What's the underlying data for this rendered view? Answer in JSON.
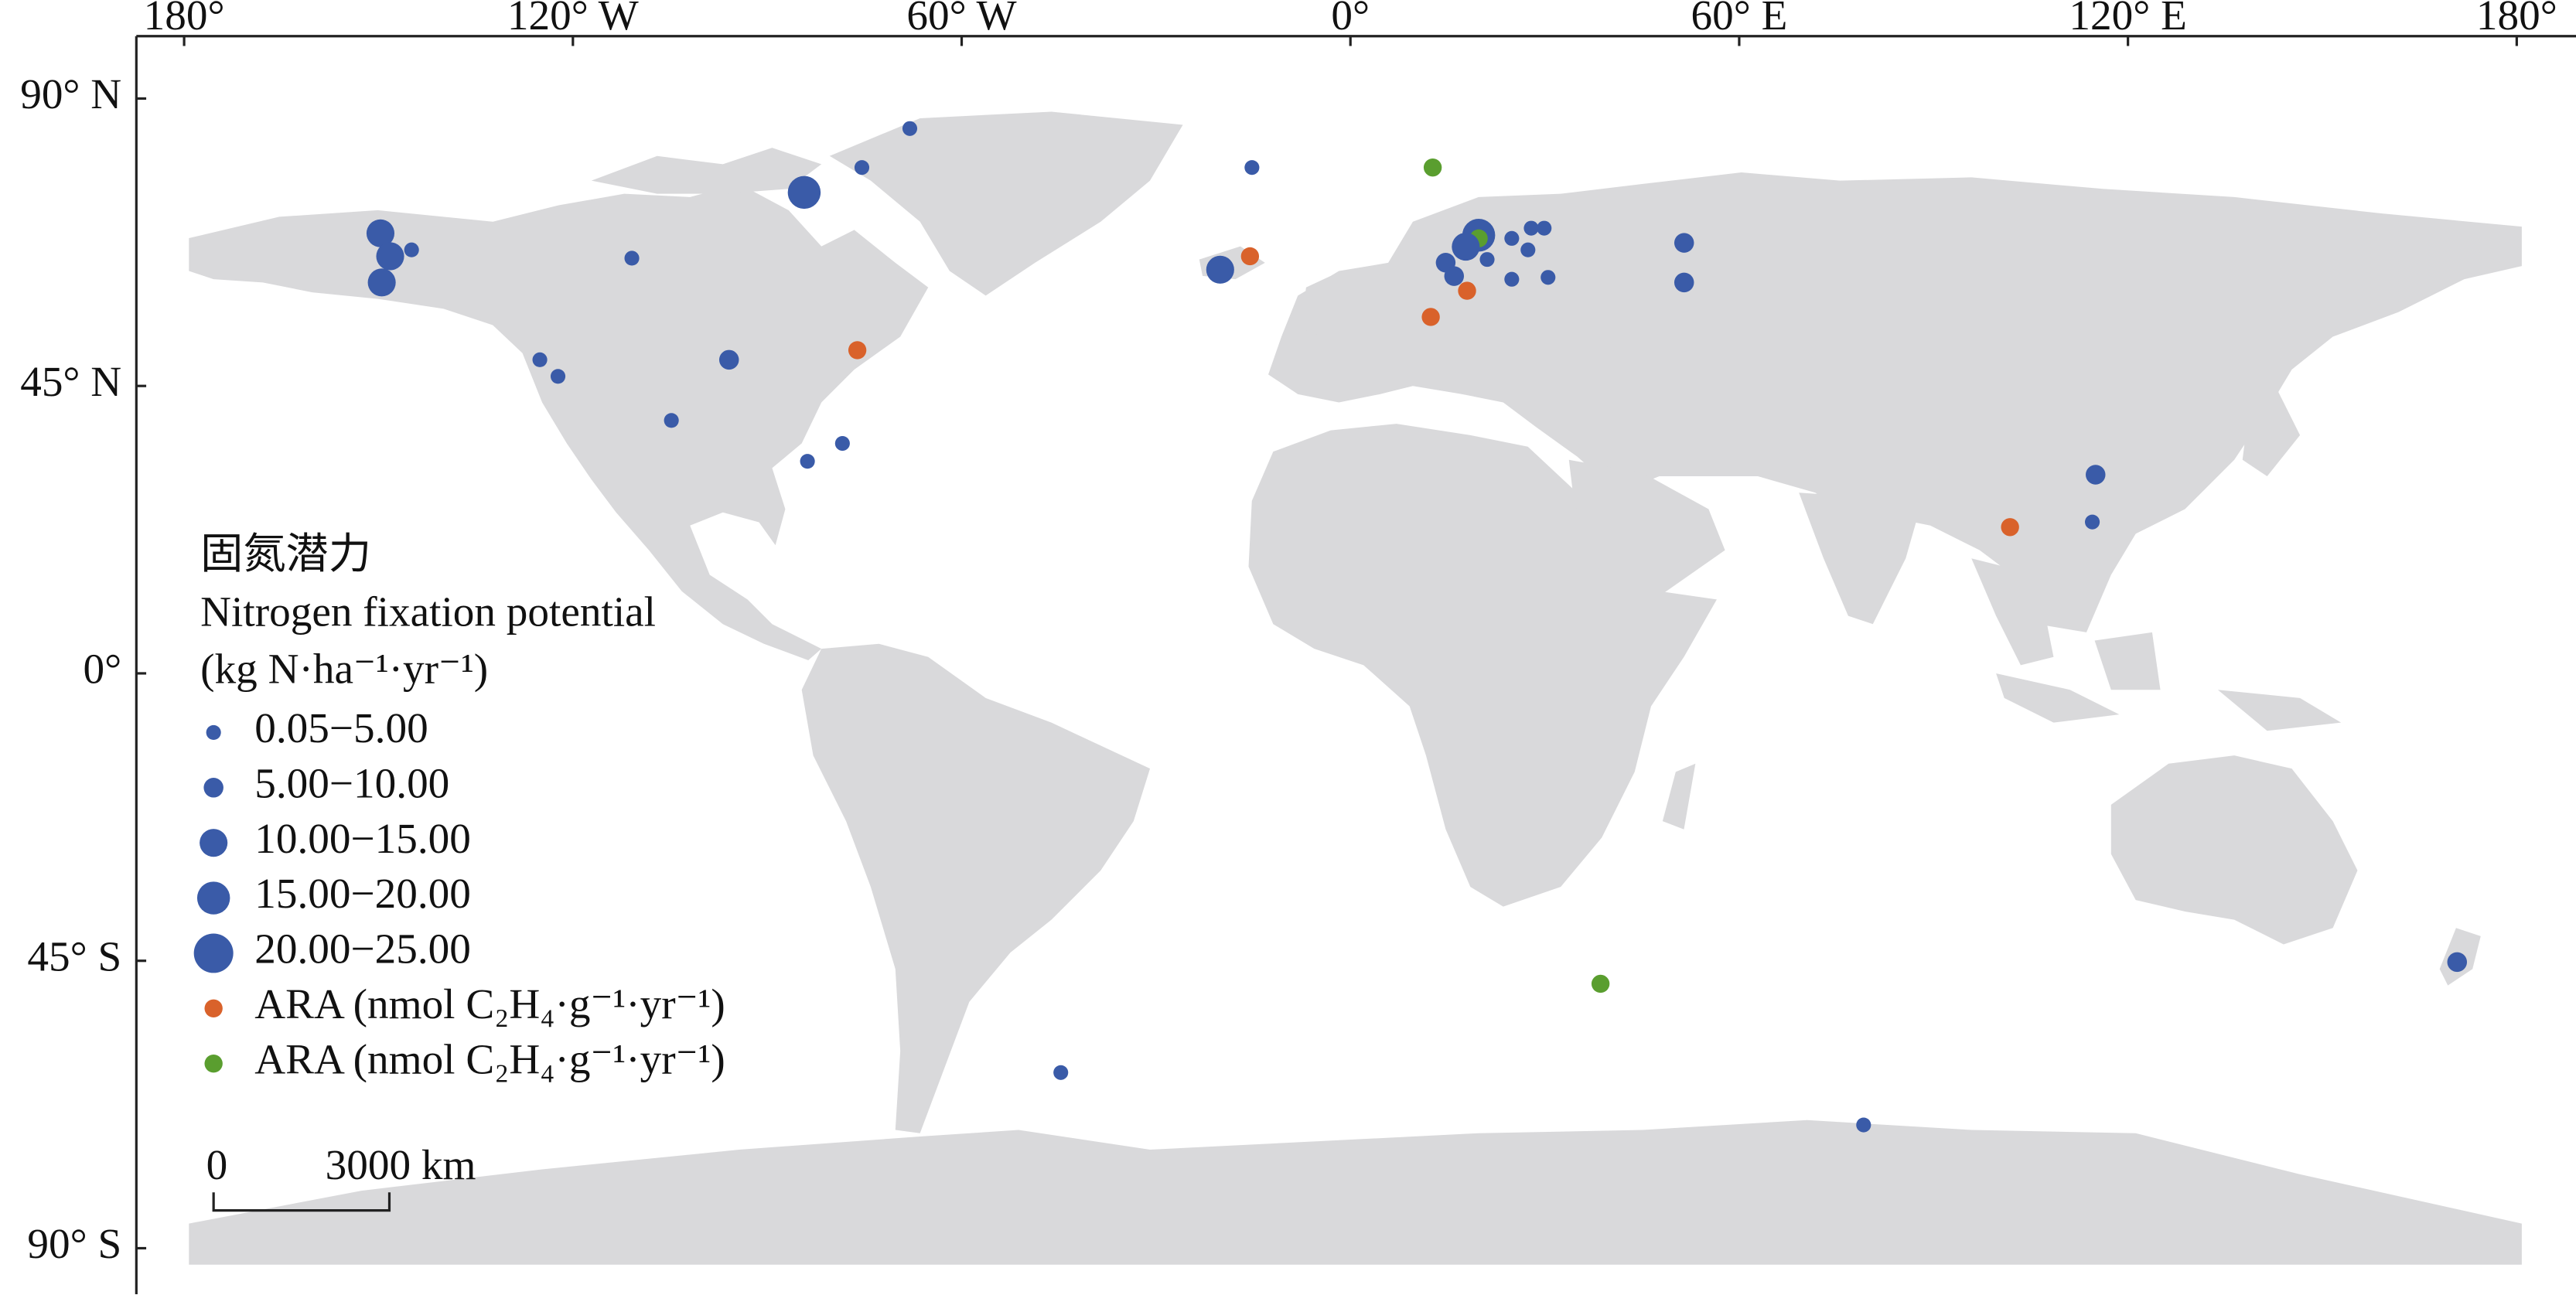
{
  "map": {
    "lon_ticks": [
      {
        "value": -180,
        "label": "180°"
      },
      {
        "value": -120,
        "label": "120° W"
      },
      {
        "value": -60,
        "label": "60° W"
      },
      {
        "value": 0,
        "label": "0°"
      },
      {
        "value": 60,
        "label": "60° E"
      },
      {
        "value": 120,
        "label": "120° E"
      },
      {
        "value": 180,
        "label": "180°"
      }
    ],
    "lat_ticks": [
      {
        "value": 90,
        "label": "90° N"
      },
      {
        "value": 45,
        "label": "45° N"
      },
      {
        "value": 0,
        "label": "0°"
      },
      {
        "value": -45,
        "label": "45° S"
      },
      {
        "value": -90,
        "label": "90° S"
      }
    ],
    "legend": {
      "title": [
        "固氮潜力",
        "Nitrogen fixation potential",
        "(kg N·ha⁻¹·yr⁻¹)"
      ],
      "items": [
        {
          "label": "0.05−5.00",
          "color": "#3a5ba8"
        },
        {
          "label": "5.00−10.00",
          "color": "#3a5ba8"
        },
        {
          "label": "10.00−15.00",
          "color": "#3a5ba8"
        },
        {
          "label": "15.00−20.00",
          "color": "#3a5ba8"
        },
        {
          "label": "20.00−25.00",
          "color": "#3a5ba8"
        },
        {
          "label": "ARA (nmol C₂H₄·g⁻¹·yr⁻¹)",
          "color": "#d9622b"
        },
        {
          "label": "ARA (nmol C₂H₄·g⁻¹·yr⁻¹)",
          "color": "#5a9e2f"
        }
      ]
    },
    "scale_bar": {
      "start_label": "0",
      "end_label": "3000 km"
    },
    "sites": [
      {
        "lon": -68.0,
        "lat": 85.3,
        "class": 0
      },
      {
        "lon": -75.4,
        "lat": 79.2,
        "class": 0
      },
      {
        "lon": -84.3,
        "lat": 75.3,
        "class": 3
      },
      {
        "lon": -15.2,
        "lat": 79.2,
        "class": 0
      },
      {
        "lon": 12.7,
        "lat": 79.2,
        "class": 6
      },
      {
        "lon": -149.7,
        "lat": 68.9,
        "class": 2
      },
      {
        "lon": -148.2,
        "lat": 65.3,
        "class": 2
      },
      {
        "lon": -144.9,
        "lat": 66.3,
        "class": 0
      },
      {
        "lon": -149.5,
        "lat": 61.2,
        "class": 2
      },
      {
        "lon": -110.9,
        "lat": 65.0,
        "class": 0
      },
      {
        "lon": -125.1,
        "lat": 49.1,
        "class": 0
      },
      {
        "lon": -122.3,
        "lat": 46.5,
        "class": 0
      },
      {
        "lon": -95.9,
        "lat": 49.1,
        "class": 1
      },
      {
        "lon": -76.1,
        "lat": 50.6,
        "class": 5
      },
      {
        "lon": -104.8,
        "lat": 39.6,
        "class": 0
      },
      {
        "lon": -78.4,
        "lat": 36.0,
        "class": 0
      },
      {
        "lon": -83.8,
        "lat": 33.2,
        "class": 0
      },
      {
        "lon": -20.1,
        "lat": 63.2,
        "class": 2
      },
      {
        "lon": -15.5,
        "lat": 65.3,
        "class": 5
      },
      {
        "lon": 19.8,
        "lat": 68.6,
        "class": 3
      },
      {
        "lon": 19.8,
        "lat": 68.1,
        "class": 6
      },
      {
        "lon": 14.7,
        "lat": 64.3,
        "class": 1
      },
      {
        "lon": 17.8,
        "lat": 66.8,
        "class": 2
      },
      {
        "lon": 21.1,
        "lat": 64.8,
        "class": 0
      },
      {
        "lon": 24.9,
        "lat": 68.1,
        "class": 0
      },
      {
        "lon": 27.9,
        "lat": 69.7,
        "class": 0
      },
      {
        "lon": 29.9,
        "lat": 69.7,
        "class": 0
      },
      {
        "lon": 27.4,
        "lat": 66.3,
        "class": 0
      },
      {
        "lon": 16.0,
        "lat": 62.2,
        "class": 1
      },
      {
        "lon": 18.0,
        "lat": 59.9,
        "class": 5
      },
      {
        "lon": 12.4,
        "lat": 55.8,
        "class": 5
      },
      {
        "lon": 24.9,
        "lat": 61.7,
        "class": 0
      },
      {
        "lon": 30.5,
        "lat": 62.0,
        "class": 0
      },
      {
        "lon": 51.5,
        "lat": 67.4,
        "class": 1
      },
      {
        "lon": 51.5,
        "lat": 61.2,
        "class": 1
      },
      {
        "lon": 115.0,
        "lat": 31.1,
        "class": 1
      },
      {
        "lon": 114.5,
        "lat": 23.7,
        "class": 0
      },
      {
        "lon": 101.8,
        "lat": 22.9,
        "class": 5
      },
      {
        "lon": 38.6,
        "lat": -48.6,
        "class": 6
      },
      {
        "lon": -44.7,
        "lat": -62.5,
        "class": 0
      },
      {
        "lon": 79.2,
        "lat": -70.7,
        "class": 0
      },
      {
        "lon": 170.8,
        "lat": -45.2,
        "class": 1
      }
    ]
  }
}
